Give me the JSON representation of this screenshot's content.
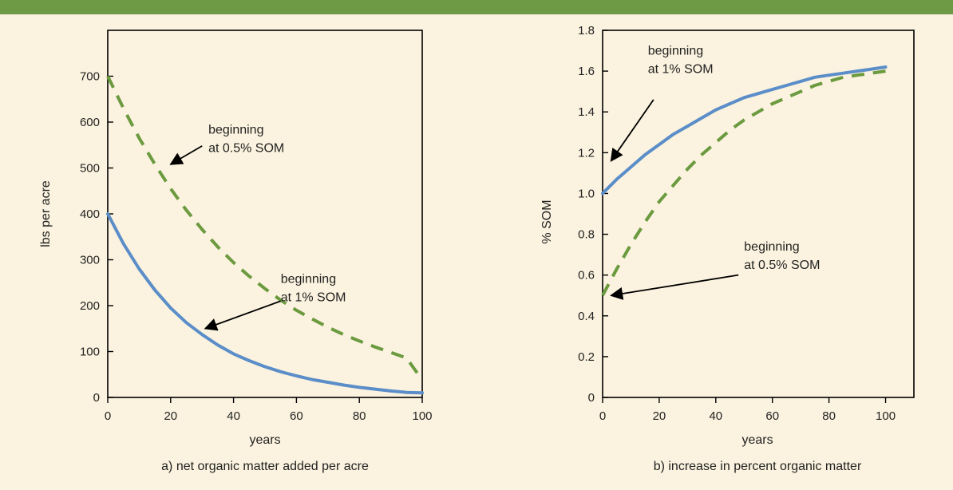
{
  "colors": {
    "background": "#fbf3df",
    "top_bar": "#6f9a45",
    "series_1pct": "#5b8ec9",
    "series_05pct": "#6b9a3f",
    "arrow": "#000000"
  },
  "chart_data": [
    {
      "type": "line",
      "title": "",
      "caption": "a) net organic matter added per acre",
      "xlabel": "years",
      "ylabel": "lbs per acre",
      "xlim": [
        0,
        100
      ],
      "ylim": [
        0,
        800
      ],
      "xticks": [
        0,
        20,
        40,
        60,
        80,
        100
      ],
      "yticks": [
        0,
        100,
        200,
        300,
        400,
        500,
        600,
        700
      ],
      "grid": false,
      "series": [
        {
          "style": "solid",
          "color": "#5b8ec9",
          "x": [
            0,
            5,
            10,
            15,
            20,
            25,
            30,
            35,
            40,
            45,
            50,
            55,
            60,
            65,
            70,
            75,
            80,
            85,
            90,
            95,
            100
          ],
          "y": [
            400,
            335,
            280,
            234,
            195,
            163,
            137,
            114,
            95,
            80,
            67,
            56,
            47,
            39,
            33,
            27,
            22,
            18,
            14,
            11,
            10
          ]
        },
        {
          "style": "dashed",
          "color": "#6b9a3f",
          "x": [
            0,
            5,
            10,
            15,
            20,
            25,
            30,
            35,
            40,
            45,
            50,
            55,
            60,
            65,
            70,
            75,
            80,
            85,
            90,
            95,
            100
          ],
          "y": [
            700,
            630,
            565,
            508,
            455,
            408,
            366,
            328,
            294,
            264,
            237,
            212,
            190,
            171,
            153,
            137,
            123,
            110,
            98,
            86,
            38
          ]
        }
      ],
      "annotations": [
        {
          "lines": [
            "beginning",
            "at 0.5% SOM"
          ],
          "text_at": [
            32,
            575
          ],
          "arrow_from": [
            30,
            548
          ],
          "arrow_to": [
            20,
            508
          ]
        },
        {
          "lines": [
            "beginning",
            "at 1% SOM"
          ],
          "text_at": [
            55,
            250
          ],
          "arrow_from": [
            55,
            210
          ],
          "arrow_to": [
            31,
            150
          ]
        }
      ]
    },
    {
      "type": "line",
      "title": "",
      "caption": "b) increase in percent organic matter",
      "xlabel": "years",
      "ylabel": "% SOM",
      "xlim": [
        0,
        110
      ],
      "ylim": [
        0,
        1.8
      ],
      "xticks": [
        0,
        20,
        40,
        60,
        80,
        100
      ],
      "yticks": [
        0,
        0.2,
        0.4,
        0.6,
        0.8,
        1.0,
        1.2,
        1.4,
        1.6,
        1.8
      ],
      "ytick_labels": [
        "0",
        "0.2",
        "0.4",
        "0.6",
        "0.8",
        "1.0",
        "1.2",
        "1.4",
        "1.6",
        "1.8"
      ],
      "grid": false,
      "series": [
        {
          "style": "solid",
          "color": "#5b8ec9",
          "x": [
            0,
            5,
            10,
            15,
            20,
            25,
            30,
            35,
            40,
            45,
            50,
            55,
            60,
            65,
            70,
            75,
            80,
            85,
            90,
            95,
            100
          ],
          "y": [
            1.0,
            1.07,
            1.13,
            1.19,
            1.24,
            1.29,
            1.33,
            1.37,
            1.41,
            1.44,
            1.47,
            1.49,
            1.51,
            1.53,
            1.55,
            1.57,
            1.58,
            1.59,
            1.6,
            1.61,
            1.62
          ]
        },
        {
          "style": "dashed",
          "color": "#6b9a3f",
          "x": [
            0,
            5,
            10,
            15,
            20,
            25,
            30,
            35,
            40,
            45,
            50,
            55,
            60,
            65,
            70,
            75,
            80,
            85,
            90,
            95,
            100
          ],
          "y": [
            0.5,
            0.63,
            0.75,
            0.86,
            0.96,
            1.04,
            1.12,
            1.19,
            1.25,
            1.31,
            1.36,
            1.4,
            1.44,
            1.47,
            1.5,
            1.53,
            1.55,
            1.57,
            1.58,
            1.59,
            1.6
          ]
        }
      ],
      "annotations": [
        {
          "lines": [
            "beginning",
            "at 1% SOM"
          ],
          "text_at": [
            16,
            1.68
          ],
          "arrow_from": [
            18,
            1.46
          ],
          "arrow_to": [
            3,
            1.16
          ]
        },
        {
          "lines": [
            "beginning",
            "at 0.5% SOM"
          ],
          "text_at": [
            50,
            0.72
          ],
          "arrow_from": [
            48,
            0.6
          ],
          "arrow_to": [
            3,
            0.5
          ]
        }
      ]
    }
  ]
}
